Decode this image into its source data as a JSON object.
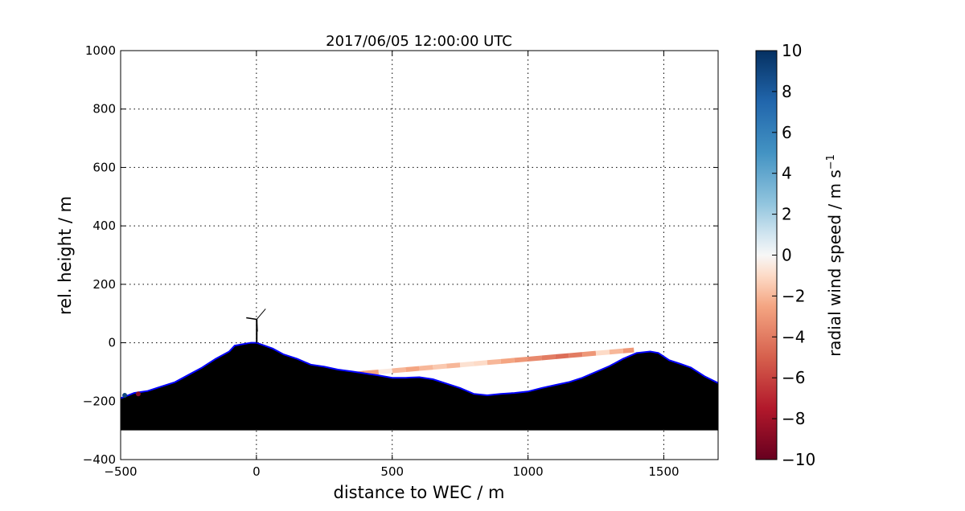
{
  "chart_data": {
    "type": "area",
    "title": "2017/06/05 12:00:00 UTC",
    "xlabel": "distance to WEC / m",
    "ylabel": "rel. height / m",
    "xlim": [
      -500,
      1700
    ],
    "ylim": [
      -400,
      1000
    ],
    "xticks": [
      -500,
      0,
      500,
      1000,
      1500
    ],
    "yticks": [
      -400,
      -200,
      0,
      200,
      400,
      600,
      800,
      1000
    ],
    "xtick_labels": [
      "−500",
      "0",
      "500",
      "1000",
      "1500"
    ],
    "ytick_labels": [
      "−400",
      "−200",
      "0",
      "200",
      "400",
      "600",
      "800",
      "1000"
    ],
    "grid": true,
    "terrain": {
      "fill_color": "#000000",
      "edge_color": "#0000ff",
      "base": -300,
      "x": [
        -500,
        -450,
        -400,
        -350,
        -300,
        -250,
        -200,
        -150,
        -100,
        -80,
        -50,
        -20,
        0,
        30,
        60,
        100,
        150,
        200,
        250,
        300,
        350,
        400,
        450,
        500,
        550,
        600,
        650,
        700,
        750,
        800,
        850,
        900,
        950,
        1000,
        1050,
        1100,
        1150,
        1200,
        1250,
        1300,
        1350,
        1400,
        1450,
        1480,
        1520,
        1560,
        1600,
        1650,
        1700
      ],
      "y": [
        -190,
        -172,
        -165,
        -150,
        -135,
        -110,
        -85,
        -55,
        -30,
        -10,
        -5,
        0,
        0,
        -10,
        -20,
        -40,
        -55,
        -75,
        -82,
        -92,
        -98,
        -105,
        -112,
        -120,
        -120,
        -118,
        -125,
        -140,
        -155,
        -175,
        -180,
        -175,
        -172,
        -167,
        -155,
        -145,
        -135,
        -120,
        -100,
        -80,
        -55,
        -35,
        -30,
        -35,
        -60,
        -72,
        -85,
        -115,
        -138
      ]
    },
    "turbine": {
      "x": 10,
      "hub_height": 80
    },
    "beam": {
      "x": [
        360,
        400,
        450,
        500,
        550,
        600,
        650,
        700,
        750,
        800,
        850,
        900,
        950,
        1000,
        1050,
        1100,
        1150,
        1200,
        1250,
        1300,
        1350,
        1390
      ],
      "y": [
        -108,
        -104,
        -100,
        -96,
        -92,
        -88,
        -84,
        -80,
        -76,
        -72,
        -68,
        -64,
        -60,
        -56,
        -52,
        -48,
        -44,
        -40,
        -36,
        -32,
        -28,
        -25
      ],
      "values": [
        -3,
        -2.5,
        -0.5,
        -2,
        -2.5,
        -2,
        -1.5,
        -2,
        -0.8,
        -1,
        -2,
        -2.5,
        -3,
        -3.5,
        -4,
        -4.5,
        -4,
        -3,
        -1,
        -2,
        -3,
        -4
      ]
    },
    "points": [
      {
        "x": -485,
        "y": -180,
        "value": 9
      },
      {
        "x": -435,
        "y": -175,
        "value": -9
      }
    ],
    "colorbar": {
      "label": "radial wind speed / m s",
      "label_superscript": "−1",
      "colormap": "RdBu",
      "range": [
        -10,
        10
      ],
      "ticks": [
        -10,
        -8,
        -6,
        -4,
        -2,
        0,
        2,
        4,
        6,
        8,
        10
      ],
      "tick_labels": [
        "−10",
        "−8",
        "−6",
        "−4",
        "−2",
        "0",
        "2",
        "4",
        "6",
        "8",
        "10"
      ]
    }
  }
}
